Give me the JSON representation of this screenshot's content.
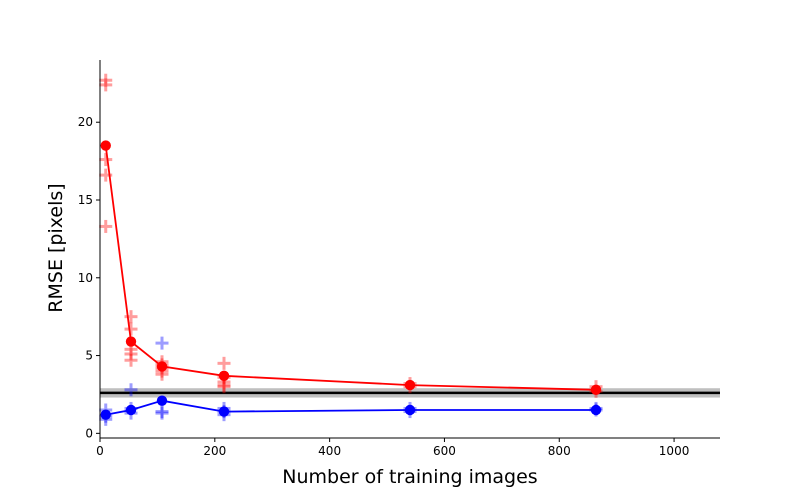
{
  "chart_data": {
    "type": "scatter",
    "title": "",
    "xlabel": "Number of training images",
    "ylabel": "RMSE [pixels]",
    "xlim": [
      0,
      1080
    ],
    "ylim": [
      -0.3,
      24
    ],
    "xticks": [
      0,
      200,
      400,
      600,
      800,
      1000
    ],
    "yticks": [
      0,
      5,
      10,
      15,
      20
    ],
    "grid": false,
    "legend": "none",
    "reference_line": {
      "y": 2.6,
      "band": [
        2.3,
        2.9
      ],
      "color": "#000000",
      "band_color": "#bfbfbf"
    },
    "series": [
      {
        "color": "#ff0000",
        "mean_points": [
          {
            "x": 10,
            "y": 18.5
          },
          {
            "x": 54,
            "y": 5.9
          },
          {
            "x": 108,
            "y": 4.3
          },
          {
            "x": 216,
            "y": 3.7
          },
          {
            "x": 540,
            "y": 3.1
          },
          {
            "x": 864,
            "y": 2.8
          }
        ],
        "individual_points": [
          {
            "x": 10,
            "y": 22.7
          },
          {
            "x": 10,
            "y": 22.4
          },
          {
            "x": 10,
            "y": 17.6
          },
          {
            "x": 10,
            "y": 16.6
          },
          {
            "x": 10,
            "y": 13.3
          },
          {
            "x": 54,
            "y": 7.5
          },
          {
            "x": 54,
            "y": 6.7
          },
          {
            "x": 54,
            "y": 5.4
          },
          {
            "x": 54,
            "y": 5.1
          },
          {
            "x": 54,
            "y": 4.7
          },
          {
            "x": 108,
            "y": 4.6
          },
          {
            "x": 108,
            "y": 4.4
          },
          {
            "x": 108,
            "y": 4.2
          },
          {
            "x": 108,
            "y": 4.0
          },
          {
            "x": 108,
            "y": 3.8
          },
          {
            "x": 216,
            "y": 4.5
          },
          {
            "x": 216,
            "y": 3.6
          },
          {
            "x": 216,
            "y": 3.3
          },
          {
            "x": 216,
            "y": 3.1
          },
          {
            "x": 216,
            "y": 3.0
          },
          {
            "x": 540,
            "y": 3.2
          },
          {
            "x": 540,
            "y": 3.0
          },
          {
            "x": 864,
            "y": 3.0
          },
          {
            "x": 864,
            "y": 2.7
          }
        ]
      },
      {
        "color": "#0000ff",
        "mean_points": [
          {
            "x": 10,
            "y": 1.2
          },
          {
            "x": 54,
            "y": 1.5
          },
          {
            "x": 108,
            "y": 2.1
          },
          {
            "x": 216,
            "y": 1.4
          },
          {
            "x": 540,
            "y": 1.5
          },
          {
            "x": 864,
            "y": 1.5
          }
        ],
        "individual_points": [
          {
            "x": 10,
            "y": 1.5
          },
          {
            "x": 10,
            "y": 1.1
          },
          {
            "x": 10,
            "y": 0.9
          },
          {
            "x": 54,
            "y": 2.8
          },
          {
            "x": 54,
            "y": 1.6
          },
          {
            "x": 54,
            "y": 1.3
          },
          {
            "x": 108,
            "y": 5.8
          },
          {
            "x": 108,
            "y": 1.4
          },
          {
            "x": 108,
            "y": 1.3
          },
          {
            "x": 216,
            "y": 1.6
          },
          {
            "x": 216,
            "y": 1.4
          },
          {
            "x": 216,
            "y": 1.2
          },
          {
            "x": 540,
            "y": 1.6
          },
          {
            "x": 540,
            "y": 1.4
          },
          {
            "x": 864,
            "y": 1.6
          },
          {
            "x": 864,
            "y": 1.5
          }
        ]
      }
    ]
  }
}
